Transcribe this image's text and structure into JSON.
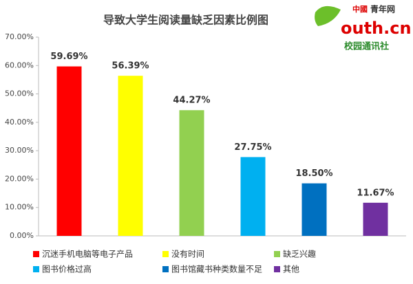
{
  "chart_data": {
    "type": "bar",
    "title": "导致大学生阅读量缺乏因素比例图",
    "categories": [
      "沉迷手机电脑等电子产品",
      "没有时间",
      "缺乏兴趣",
      "图书价格过高",
      "图书馆藏书种类数量不足",
      "其他"
    ],
    "values": [
      59.69,
      56.39,
      44.27,
      27.75,
      18.5,
      11.67
    ],
    "value_labels": [
      "59.69%",
      "56.39%",
      "44.27%",
      "27.75%",
      "18.50%",
      "11.67%"
    ],
    "colors": [
      "#ff0000",
      "#ffff00",
      "#92d050",
      "#00b0f0",
      "#0070c0",
      "#7030a0"
    ],
    "ylim": [
      0,
      70
    ],
    "yticks": [
      {
        "value": 0,
        "label": "0.00%"
      },
      {
        "value": 10,
        "label": "10.00%"
      },
      {
        "value": 20,
        "label": "20.00%"
      },
      {
        "value": 30,
        "label": "30.00%"
      },
      {
        "value": 40,
        "label": "40.00%"
      },
      {
        "value": 50,
        "label": "50.00%"
      },
      {
        "value": 60,
        "label": "60.00%"
      },
      {
        "value": 70,
        "label": "70.00%"
      }
    ],
    "grid": false,
    "logo": {
      "brand": "中國",
      "name": "青年网",
      "site": "outh.cn",
      "sub": "校园通讯社"
    }
  }
}
